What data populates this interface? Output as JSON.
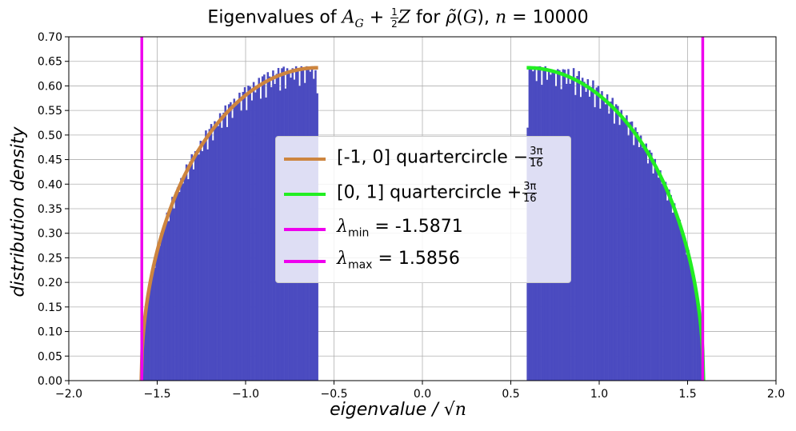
{
  "chart_data": {
    "type": "bar",
    "title": "Eigenvalues of A_G + ½Z for ρ̃(G), n = 10000",
    "xlabel": "eigenvalue / √n",
    "ylabel": "distribution density",
    "xlim": [
      -2.0,
      2.0
    ],
    "ylim": [
      0.0,
      0.7
    ],
    "grid": true,
    "legend_position": "center",
    "xticks": [
      "−2.0",
      "−1.5",
      "−1.0",
      "−0.5",
      "0.0",
      "0.5",
      "1.0",
      "1.5",
      "2.0"
    ],
    "yticks": [
      "0.00",
      "0.05",
      "0.10",
      "0.15",
      "0.20",
      "0.25",
      "0.30",
      "0.35",
      "0.40",
      "0.45",
      "0.50",
      "0.55",
      "0.60",
      "0.65",
      "0.70"
    ],
    "histogram": {
      "color": "#4b4bc0",
      "left_range": [
        -1.59,
        -0.59
      ],
      "right_range": [
        0.59,
        1.59
      ],
      "left_bar_edge_value": 0.585,
      "right_bar_edge_value": 0.515
    },
    "series": [
      {
        "name": "[-1, 0] quartercircle −3π/16",
        "type": "line",
        "color": "#cd853f",
        "domain": [
          -1.59,
          -0.59
        ],
        "peak": 0.637
      },
      {
        "name": "[0, 1] quartercircle +3π/16",
        "type": "line",
        "color": "#22ee22",
        "domain": [
          0.59,
          1.59
        ],
        "peak": 0.637
      },
      {
        "name": "λmin = -1.5871",
        "type": "vline",
        "color": "#ee00ee",
        "x": -1.5871
      },
      {
        "name": "λmax = 1.5856",
        "type": "vline",
        "color": "#ee00ee",
        "x": 1.5856
      }
    ],
    "legend": [
      {
        "text": "[-1, 0] quartercircle −",
        "frac_num": "3π",
        "frac_den": "16",
        "color": "#cd853f"
      },
      {
        "text": "[0, 1] quartercircle +",
        "frac_num": "3π",
        "frac_den": "16",
        "color": "#22ee22"
      },
      {
        "sym": "λ",
        "sub": "min",
        "text": " = -1.5871",
        "color": "#ee00ee"
      },
      {
        "sym": "λ",
        "sub": "max",
        "text": " = 1.5856",
        "color": "#ee00ee"
      }
    ]
  }
}
